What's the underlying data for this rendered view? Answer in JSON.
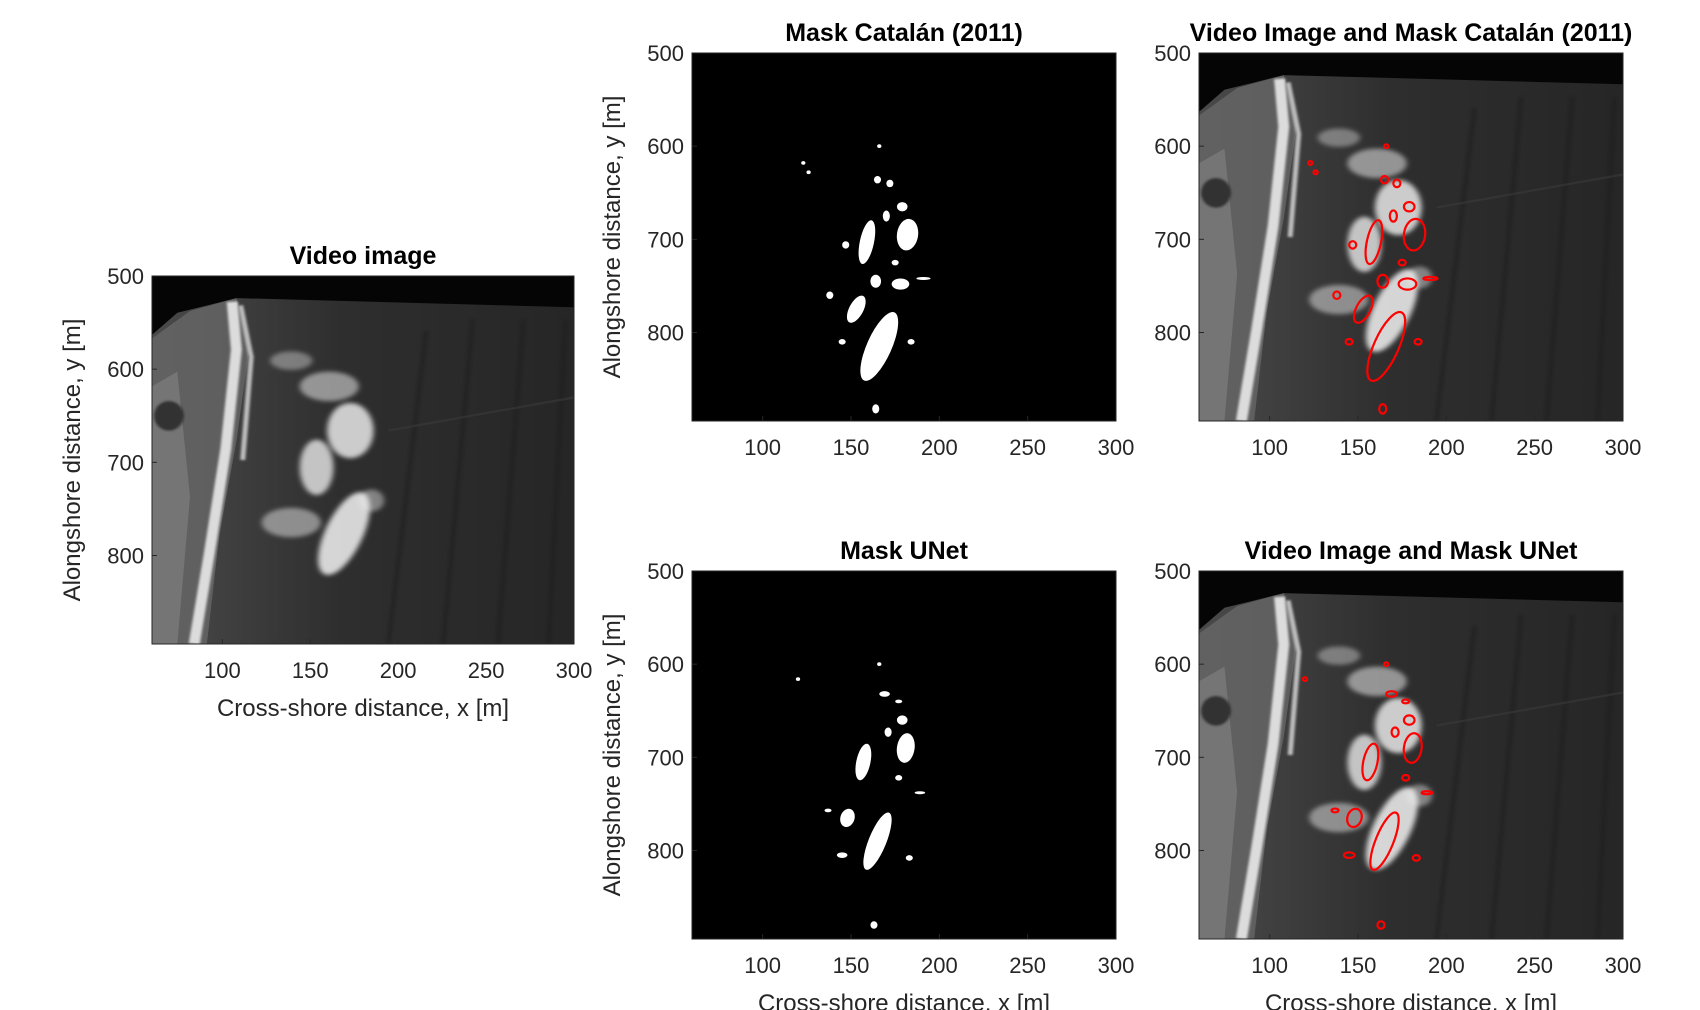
{
  "chart_data": [
    {
      "id": "video",
      "type": "heatmap",
      "title": "Video image",
      "xlabel": "Cross-shore distance, x [m]",
      "ylabel": "Alongshore distance, y [m]",
      "xlim": [
        60,
        300
      ],
      "ylim": [
        500,
        895
      ],
      "y_reversed": true,
      "colormap": "gray",
      "x_ticks": [
        100,
        150,
        200,
        250,
        300
      ],
      "y_ticks": [
        500,
        600,
        700,
        800
      ]
    },
    {
      "id": "mask-catalan",
      "type": "heatmap",
      "title": "Mask Catalán (2011)",
      "xlabel": "",
      "ylabel": "Alongshore distance, y [m]",
      "xlim": [
        60,
        300
      ],
      "ylim": [
        500,
        895
      ],
      "y_reversed": true,
      "colormap": "binary",
      "x_ticks": [
        100,
        150,
        200,
        250,
        300
      ],
      "y_ticks": [
        500,
        600,
        700,
        800
      ],
      "blobs": [
        {
          "x": 166,
          "y": 600,
          "rx": 1.2,
          "ry": 2,
          "rot": 0
        },
        {
          "x": 123,
          "y": 618,
          "rx": 1.2,
          "ry": 2,
          "rot": 0
        },
        {
          "x": 126,
          "y": 628,
          "rx": 1.2,
          "ry": 2,
          "rot": 0
        },
        {
          "x": 165,
          "y": 636,
          "rx": 2,
          "ry": 4,
          "rot": 0
        },
        {
          "x": 172,
          "y": 640,
          "rx": 2,
          "ry": 4,
          "rot": 0
        },
        {
          "x": 179,
          "y": 665,
          "rx": 3,
          "ry": 5,
          "rot": 0
        },
        {
          "x": 170,
          "y": 675,
          "rx": 2,
          "ry": 6,
          "rot": 0
        },
        {
          "x": 182,
          "y": 695,
          "rx": 6,
          "ry": 17,
          "rot": 8
        },
        {
          "x": 159,
          "y": 703,
          "rx": 4,
          "ry": 24,
          "rot": 12
        },
        {
          "x": 175,
          "y": 725,
          "rx": 2,
          "ry": 3,
          "rot": 0
        },
        {
          "x": 147,
          "y": 706,
          "rx": 2,
          "ry": 4,
          "rot": 0
        },
        {
          "x": 138,
          "y": 760,
          "rx": 2,
          "ry": 4,
          "rot": 0
        },
        {
          "x": 164,
          "y": 745,
          "rx": 3,
          "ry": 7,
          "rot": 0
        },
        {
          "x": 191,
          "y": 742,
          "rx": 4,
          "ry": 1.5,
          "rot": 0
        },
        {
          "x": 178,
          "y": 748,
          "rx": 5,
          "ry": 6,
          "rot": 0
        },
        {
          "x": 153,
          "y": 775,
          "rx": 4,
          "ry": 16,
          "rot": 28
        },
        {
          "x": 166,
          "y": 815,
          "rx": 7,
          "ry": 40,
          "rot": 24
        },
        {
          "x": 145,
          "y": 810,
          "rx": 2,
          "ry": 3,
          "rot": 0
        },
        {
          "x": 184,
          "y": 810,
          "rx": 2,
          "ry": 3,
          "rot": 0
        },
        {
          "x": 164,
          "y": 882,
          "rx": 2,
          "ry": 5,
          "rot": 0
        }
      ]
    },
    {
      "id": "overlay-catalan",
      "type": "heatmap",
      "title": "Video Image and Mask Catalán (2011)",
      "xlabel": "",
      "ylabel": "",
      "xlim": [
        60,
        300
      ],
      "ylim": [
        500,
        895
      ],
      "y_reversed": true,
      "colormap": "gray",
      "contour_color": "#ff0000",
      "x_ticks": [
        100,
        150,
        200,
        250,
        300
      ],
      "y_ticks": [
        500,
        600,
        700,
        800
      ]
    },
    {
      "id": "mask-unet",
      "type": "heatmap",
      "title": "Mask UNet",
      "xlabel": "Cross-shore distance, x [m]",
      "ylabel": "Alongshore distance, y [m]",
      "xlim": [
        60,
        300
      ],
      "ylim": [
        500,
        895
      ],
      "y_reversed": true,
      "colormap": "binary",
      "x_ticks": [
        100,
        150,
        200,
        250,
        300
      ],
      "y_ticks": [
        500,
        600,
        700,
        800
      ],
      "blobs": [
        {
          "x": 166,
          "y": 600,
          "rx": 1.2,
          "ry": 2,
          "rot": 0
        },
        {
          "x": 120,
          "y": 616,
          "rx": 1.2,
          "ry": 2,
          "rot": 0
        },
        {
          "x": 169,
          "y": 632,
          "rx": 3,
          "ry": 3,
          "rot": 0
        },
        {
          "x": 177,
          "y": 640,
          "rx": 2,
          "ry": 2,
          "rot": 0
        },
        {
          "x": 179,
          "y": 660,
          "rx": 3,
          "ry": 5,
          "rot": 0
        },
        {
          "x": 171,
          "y": 673,
          "rx": 2,
          "ry": 5,
          "rot": 0
        },
        {
          "x": 181,
          "y": 690,
          "rx": 5,
          "ry": 16,
          "rot": 8
        },
        {
          "x": 157,
          "y": 705,
          "rx": 4,
          "ry": 20,
          "rot": 12
        },
        {
          "x": 177,
          "y": 722,
          "rx": 2,
          "ry": 3,
          "rot": 0
        },
        {
          "x": 189,
          "y": 738,
          "rx": 3,
          "ry": 1.5,
          "rot": 0
        },
        {
          "x": 137,
          "y": 757,
          "rx": 2,
          "ry": 2,
          "rot": 0
        },
        {
          "x": 148,
          "y": 765,
          "rx": 4,
          "ry": 10,
          "rot": 18
        },
        {
          "x": 165,
          "y": 790,
          "rx": 5,
          "ry": 33,
          "rot": 22
        },
        {
          "x": 145,
          "y": 805,
          "rx": 3,
          "ry": 3,
          "rot": 0
        },
        {
          "x": 183,
          "y": 808,
          "rx": 2,
          "ry": 3,
          "rot": 0
        },
        {
          "x": 163,
          "y": 880,
          "rx": 2,
          "ry": 4,
          "rot": 0
        }
      ]
    },
    {
      "id": "overlay-unet",
      "type": "heatmap",
      "title": "Video Image and Mask UNet",
      "xlabel": "Cross-shore distance, x [m]",
      "ylabel": "",
      "xlim": [
        60,
        300
      ],
      "ylim": [
        500,
        895
      ],
      "y_reversed": true,
      "colormap": "gray",
      "contour_color": "#ff0000",
      "x_ticks": [
        100,
        150,
        200,
        250,
        300
      ],
      "y_ticks": [
        500,
        600,
        700,
        800
      ]
    }
  ]
}
